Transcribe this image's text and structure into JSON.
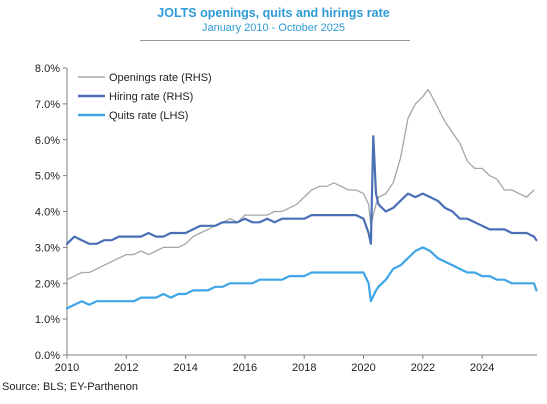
{
  "header": {
    "title": "JOLTS openings, quits and hirings rate",
    "subtitle": "January 2010 - October 2025"
  },
  "footer": {
    "source": "Source: BLS; EY-Parthenon"
  },
  "chart_data": {
    "type": "line",
    "title": "JOLTS openings, quits and hirings rate",
    "subtitle": "January 2010 - October 2025",
    "xlim": [
      2010,
      2025.85
    ],
    "ylim": [
      0,
      8
    ],
    "x_ticks": [
      "2010",
      "2012",
      "2014",
      "2016",
      "2018",
      "2020",
      "2022",
      "2024"
    ],
    "y_ticks": [
      "0.0%",
      "1.0%",
      "2.0%",
      "3.0%",
      "4.0%",
      "5.0%",
      "6.0%",
      "7.0%",
      "8.0%"
    ],
    "grid": false,
    "legend_position": "top-left",
    "series": [
      {
        "name": "Openings rate (RHS)",
        "color": "#a6a6a6",
        "x": [
          2010.0,
          2010.25,
          2010.5,
          2010.75,
          2011.0,
          2011.25,
          2011.5,
          2011.75,
          2012.0,
          2012.25,
          2012.5,
          2012.75,
          2013.0,
          2013.25,
          2013.5,
          2013.75,
          2014.0,
          2014.25,
          2014.5,
          2014.75,
          2015.0,
          2015.25,
          2015.5,
          2015.75,
          2016.0,
          2016.25,
          2016.5,
          2016.75,
          2017.0,
          2017.25,
          2017.5,
          2017.75,
          2018.0,
          2018.25,
          2018.5,
          2018.75,
          2019.0,
          2019.25,
          2019.5,
          2019.75,
          2020.0,
          2020.17,
          2020.25,
          2020.33,
          2020.42,
          2020.5,
          2020.75,
          2021.0,
          2021.25,
          2021.5,
          2021.75,
          2022.0,
          2022.17,
          2022.25,
          2022.5,
          2022.75,
          2023.0,
          2023.25,
          2023.5,
          2023.75,
          2024.0,
          2024.25,
          2024.5,
          2024.75,
          2025.0,
          2025.25,
          2025.5,
          2025.75
        ],
        "values": [
          2.1,
          2.2,
          2.3,
          2.3,
          2.4,
          2.5,
          2.6,
          2.7,
          2.8,
          2.8,
          2.9,
          2.8,
          2.9,
          3.0,
          3.0,
          3.0,
          3.1,
          3.3,
          3.4,
          3.5,
          3.6,
          3.7,
          3.8,
          3.7,
          3.9,
          3.9,
          3.9,
          3.9,
          4.0,
          4.0,
          4.1,
          4.2,
          4.4,
          4.6,
          4.7,
          4.7,
          4.8,
          4.7,
          4.6,
          4.6,
          4.5,
          4.2,
          3.6,
          3.9,
          4.2,
          4.4,
          4.5,
          4.8,
          5.5,
          6.6,
          7.0,
          7.2,
          7.4,
          7.3,
          6.9,
          6.5,
          6.2,
          5.9,
          5.4,
          5.2,
          5.2,
          5.0,
          4.9,
          4.6,
          4.6,
          4.5,
          4.4,
          4.6
        ]
      },
      {
        "name": "Hiring rate (RHS)",
        "color": "#4a6fb5",
        "x": [
          2010.0,
          2010.25,
          2010.5,
          2010.75,
          2011.0,
          2011.25,
          2011.5,
          2011.75,
          2012.0,
          2012.25,
          2012.5,
          2012.75,
          2013.0,
          2013.25,
          2013.5,
          2013.75,
          2014.0,
          2014.25,
          2014.5,
          2014.75,
          2015.0,
          2015.25,
          2015.5,
          2015.75,
          2016.0,
          2016.25,
          2016.5,
          2016.75,
          2017.0,
          2017.25,
          2017.5,
          2017.75,
          2018.0,
          2018.25,
          2018.5,
          2018.75,
          2019.0,
          2019.25,
          2019.5,
          2019.75,
          2020.0,
          2020.17,
          2020.25,
          2020.33,
          2020.42,
          2020.5,
          2020.75,
          2021.0,
          2021.25,
          2021.5,
          2021.75,
          2022.0,
          2022.25,
          2022.5,
          2022.75,
          2023.0,
          2023.25,
          2023.5,
          2023.75,
          2024.0,
          2024.25,
          2024.5,
          2024.75,
          2025.0,
          2025.25,
          2025.5,
          2025.75,
          2025.83
        ],
        "values": [
          3.1,
          3.3,
          3.2,
          3.1,
          3.1,
          3.2,
          3.2,
          3.3,
          3.3,
          3.3,
          3.3,
          3.4,
          3.3,
          3.3,
          3.4,
          3.4,
          3.4,
          3.5,
          3.6,
          3.6,
          3.6,
          3.7,
          3.7,
          3.7,
          3.8,
          3.7,
          3.7,
          3.8,
          3.7,
          3.8,
          3.8,
          3.8,
          3.8,
          3.9,
          3.9,
          3.9,
          3.9,
          3.9,
          3.9,
          3.9,
          3.8,
          3.4,
          3.1,
          6.1,
          4.5,
          4.2,
          4.0,
          4.1,
          4.3,
          4.5,
          4.4,
          4.5,
          4.4,
          4.3,
          4.1,
          4.0,
          3.8,
          3.8,
          3.7,
          3.6,
          3.5,
          3.5,
          3.5,
          3.4,
          3.4,
          3.4,
          3.3,
          3.2
        ]
      },
      {
        "name": "Quits rate (LHS)",
        "color": "#3fa5e6",
        "x": [
          2010.0,
          2010.25,
          2010.5,
          2010.75,
          2011.0,
          2011.25,
          2011.5,
          2011.75,
          2012.0,
          2012.25,
          2012.5,
          2012.75,
          2013.0,
          2013.25,
          2013.5,
          2013.75,
          2014.0,
          2014.25,
          2014.5,
          2014.75,
          2015.0,
          2015.25,
          2015.5,
          2015.75,
          2016.0,
          2016.25,
          2016.5,
          2016.75,
          2017.0,
          2017.25,
          2017.5,
          2017.75,
          2018.0,
          2018.25,
          2018.5,
          2018.75,
          2019.0,
          2019.25,
          2019.5,
          2019.75,
          2020.0,
          2020.17,
          2020.25,
          2020.42,
          2020.5,
          2020.75,
          2021.0,
          2021.25,
          2021.5,
          2021.75,
          2022.0,
          2022.25,
          2022.5,
          2022.75,
          2023.0,
          2023.25,
          2023.5,
          2023.75,
          2024.0,
          2024.25,
          2024.5,
          2024.75,
          2025.0,
          2025.25,
          2025.5,
          2025.75,
          2025.83
        ],
        "values": [
          1.3,
          1.4,
          1.5,
          1.4,
          1.5,
          1.5,
          1.5,
          1.5,
          1.5,
          1.5,
          1.6,
          1.6,
          1.6,
          1.7,
          1.6,
          1.7,
          1.7,
          1.8,
          1.8,
          1.8,
          1.9,
          1.9,
          2.0,
          2.0,
          2.0,
          2.0,
          2.1,
          2.1,
          2.1,
          2.1,
          2.2,
          2.2,
          2.2,
          2.3,
          2.3,
          2.3,
          2.3,
          2.3,
          2.3,
          2.3,
          2.3,
          2.0,
          1.5,
          1.8,
          1.9,
          2.1,
          2.4,
          2.5,
          2.7,
          2.9,
          3.0,
          2.9,
          2.7,
          2.6,
          2.5,
          2.4,
          2.3,
          2.3,
          2.2,
          2.2,
          2.1,
          2.1,
          2.0,
          2.0,
          2.0,
          2.0,
          1.8
        ]
      }
    ]
  }
}
